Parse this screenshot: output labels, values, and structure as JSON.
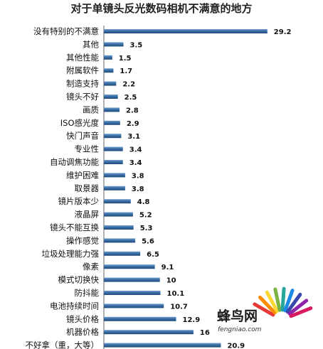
{
  "chart_data": {
    "type": "bar",
    "orientation": "horizontal",
    "title": "对于单镜头反光数码相机不满意的地方",
    "categories": [
      "没有特别的不满意",
      "其他",
      "其他性能",
      "附属软件",
      "制造支持",
      "镜头不好",
      "画质",
      "ISO感光度",
      "快门声音",
      "专业性",
      "自动调焦功能",
      "维护困难",
      "取景器",
      "镜片版本少",
      "液晶屏",
      "镜头不能互换",
      "操作感觉",
      "垃圾处理能力强",
      "像素",
      "模式切换快",
      "防抖能",
      "电池持续时间",
      "镜头价格",
      "机器价格",
      "不好拿（重，大等）"
    ],
    "values": [
      29.2,
      3.5,
      1.5,
      1.7,
      2.2,
      2.5,
      2.8,
      2.9,
      3.1,
      3.4,
      3.4,
      3.8,
      3.8,
      4.8,
      5.2,
      5.3,
      5.6,
      6.5,
      9.1,
      10,
      10.1,
      10.7,
      12.9,
      16,
      20.9
    ],
    "value_labels": [
      "29.2",
      "3.5",
      "1.5",
      "1.7",
      "2.2",
      "2.5",
      "2.8",
      "2.9",
      "3.1",
      "3.4",
      "3.4",
      "3.8",
      "3.8",
      "4.8",
      "5.2",
      "5.3",
      "5.6",
      "6.5",
      "9.1",
      "10",
      "10.1",
      "10.7",
      "12.9",
      "16",
      "20.9"
    ],
    "bar_color": "#3a6ea5",
    "grid": false,
    "legend": "none"
  },
  "watermark": {
    "brand": "蜂鸟网",
    "url": "fengniao.com"
  }
}
